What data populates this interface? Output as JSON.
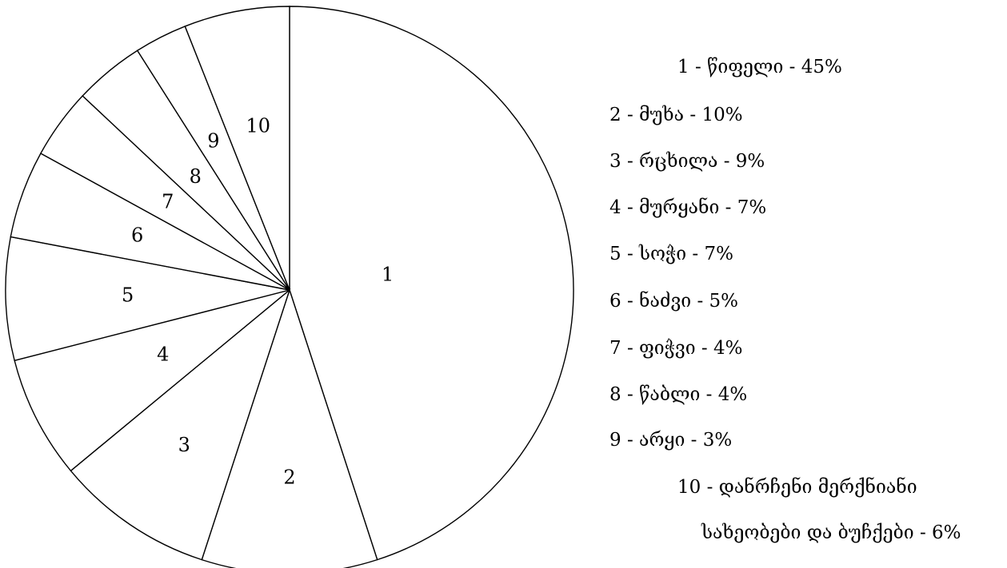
{
  "chart_data": {
    "type": "pie",
    "categories": [
      "1",
      "2",
      "3",
      "4",
      "5",
      "6",
      "7",
      "8",
      "9",
      "10"
    ],
    "values": [
      45,
      10,
      9,
      7,
      7,
      5,
      4,
      4,
      3,
      6
    ],
    "slice_labels": [
      "1",
      "2",
      "3",
      "4",
      "5",
      "6",
      "7",
      "8",
      "9",
      "10"
    ],
    "legend": [
      "1 - წიფელი - 45%",
      "2 - მუხა - 10%",
      "3 - რცხილა - 9%",
      "4 - მურყანი - 7%",
      "5 - სოჭი - 7%",
      "6 - ნაძვი - 5%",
      "7 - ფიჭვი - 4%",
      "8 - წაბლი - 4%",
      "9 - არყი - 3%",
      "10 - დანრჩენი მერქნიანი",
      "სახეობები და ბუჩქები - 6%"
    ],
    "colors": {
      "fill": "#ffffff",
      "stroke": "#000000"
    }
  }
}
